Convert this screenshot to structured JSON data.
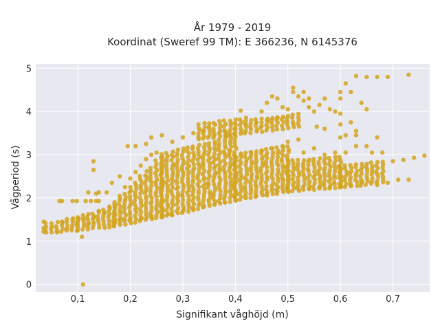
{
  "chart_data": {
    "type": "scatter",
    "title_line1": "År 1979 - 2019",
    "title_line2": "Koordinat (Sweref 99 TM): E 366236, N 6145376",
    "xlabel": "Signifikant våghöjd (m)",
    "ylabel": "Vågperiod (s)",
    "xlim": [
      0.02,
      0.77
    ],
    "ylim": [
      -0.18,
      5.1
    ],
    "xticks": [
      0.1,
      0.2,
      0.3,
      0.4,
      0.5,
      0.6,
      0.7
    ],
    "xtick_labels": [
      "0,1",
      "0,2",
      "0,3",
      "0,4",
      "0,5",
      "0,6",
      "0,7"
    ],
    "yticks": [
      0,
      1,
      2,
      3,
      4,
      5
    ],
    "ytick_labels": [
      "0",
      "1",
      "2",
      "3",
      "4",
      "5"
    ],
    "grid": true,
    "background": "#e8e8f0",
    "marker_color": "#d4a420",
    "points": [
      [
        0.11,
        0.0
      ],
      [
        0.035,
        1.45
      ],
      [
        0.035,
        1.3
      ],
      [
        0.035,
        1.22
      ],
      [
        0.06,
        1.22
      ],
      [
        0.07,
        1.45
      ],
      [
        0.09,
        1.5
      ],
      [
        0.108,
        1.1
      ],
      [
        0.065,
        1.93
      ],
      [
        0.07,
        1.93
      ],
      [
        0.09,
        1.93
      ],
      [
        0.098,
        1.93
      ],
      [
        0.115,
        1.93
      ],
      [
        0.125,
        1.93
      ],
      [
        0.135,
        1.93
      ],
      [
        0.14,
        1.93
      ],
      [
        0.12,
        2.13
      ],
      [
        0.135,
        2.1
      ],
      [
        0.14,
        2.13
      ],
      [
        0.155,
        2.13
      ],
      [
        0.13,
        2.65
      ],
      [
        0.13,
        2.85
      ],
      [
        0.165,
        2.35
      ],
      [
        0.18,
        2.5
      ],
      [
        0.1,
        1.55
      ],
      [
        0.11,
        1.6
      ],
      [
        0.12,
        1.4
      ],
      [
        0.13,
        1.55
      ],
      [
        0.14,
        1.7
      ],
      [
        0.15,
        1.65
      ],
      [
        0.16,
        1.8
      ],
      [
        0.17,
        1.9
      ],
      [
        0.18,
        2.05
      ],
      [
        0.19,
        2.25
      ],
      [
        0.2,
        2.45
      ],
      [
        0.21,
        2.6
      ],
      [
        0.22,
        2.75
      ],
      [
        0.23,
        2.9
      ],
      [
        0.24,
        3.0
      ],
      [
        0.25,
        3.05
      ],
      [
        0.195,
        3.2
      ],
      [
        0.21,
        3.2
      ],
      [
        0.23,
        3.25
      ],
      [
        0.24,
        3.4
      ],
      [
        0.26,
        3.45
      ],
      [
        0.28,
        3.3
      ],
      [
        0.3,
        3.4
      ],
      [
        0.32,
        3.5
      ],
      [
        0.34,
        3.55
      ],
      [
        0.36,
        3.45
      ],
      [
        0.38,
        3.55
      ],
      [
        0.4,
        3.6
      ],
      [
        0.42,
        3.7
      ],
      [
        0.44,
        3.75
      ],
      [
        0.46,
        3.8
      ],
      [
        0.48,
        3.85
      ],
      [
        0.39,
        3.1
      ],
      [
        0.41,
        3.0
      ],
      [
        0.43,
        3.05
      ],
      [
        0.45,
        3.1
      ],
      [
        0.47,
        3.15
      ],
      [
        0.49,
        3.2
      ],
      [
        0.5,
        3.3
      ],
      [
        0.52,
        3.35
      ],
      [
        0.45,
        4.0
      ],
      [
        0.46,
        4.2
      ],
      [
        0.47,
        4.35
      ],
      [
        0.48,
        4.3
      ],
      [
        0.49,
        4.1
      ],
      [
        0.5,
        4.05
      ],
      [
        0.51,
        4.45
      ],
      [
        0.52,
        4.35
      ],
      [
        0.53,
        4.25
      ],
      [
        0.54,
        4.1
      ],
      [
        0.55,
        4.0
      ],
      [
        0.56,
        4.15
      ],
      [
        0.57,
        4.3
      ],
      [
        0.58,
        4.05
      ],
      [
        0.59,
        4.0
      ],
      [
        0.6,
        4.3
      ],
      [
        0.6,
        4.45
      ],
      [
        0.61,
        4.65
      ],
      [
        0.62,
        4.45
      ],
      [
        0.64,
        4.2
      ],
      [
        0.65,
        4.05
      ],
      [
        0.63,
        4.82
      ],
      [
        0.65,
        4.8
      ],
      [
        0.67,
        4.8
      ],
      [
        0.69,
        4.8
      ],
      [
        0.73,
        4.85
      ],
      [
        0.41,
        4.02
      ],
      [
        0.51,
        4.55
      ],
      [
        0.53,
        4.45
      ],
      [
        0.54,
        4.3
      ],
      [
        0.555,
        3.65
      ],
      [
        0.57,
        3.6
      ],
      [
        0.6,
        3.7
      ],
      [
        0.61,
        3.45
      ],
      [
        0.62,
        3.75
      ],
      [
        0.63,
        3.45
      ],
      [
        0.6,
        3.95
      ],
      [
        0.65,
        3.2
      ],
      [
        0.6,
        3.4
      ],
      [
        0.63,
        3.55
      ],
      [
        0.67,
        3.4
      ],
      [
        0.59,
        3.05
      ],
      [
        0.61,
        3.05
      ],
      [
        0.53,
        3.05
      ],
      [
        0.55,
        3.15
      ],
      [
        0.57,
        3.0
      ],
      [
        0.63,
        3.2
      ],
      [
        0.66,
        3.05
      ],
      [
        0.68,
        3.05
      ],
      [
        0.7,
        2.85
      ],
      [
        0.72,
        2.88
      ],
      [
        0.74,
        2.93
      ],
      [
        0.76,
        2.98
      ],
      [
        0.73,
        2.42
      ],
      [
        0.71,
        2.42
      ],
      [
        0.69,
        2.35
      ],
      [
        0.67,
        2.3
      ],
      [
        0.26,
        1.55
      ],
      [
        0.28,
        1.6
      ],
      [
        0.3,
        1.7
      ],
      [
        0.32,
        1.75
      ],
      [
        0.34,
        1.8
      ],
      [
        0.36,
        1.85
      ],
      [
        0.38,
        1.9
      ],
      [
        0.4,
        1.95
      ],
      [
        0.42,
        2.0
      ],
      [
        0.44,
        2.05
      ],
      [
        0.46,
        2.1
      ],
      [
        0.48,
        2.15
      ],
      [
        0.5,
        2.2
      ],
      [
        0.52,
        2.2
      ],
      [
        0.54,
        2.22
      ],
      [
        0.56,
        2.25
      ],
      [
        0.58,
        2.25
      ],
      [
        0.6,
        2.28
      ],
      [
        0.62,
        2.3
      ],
      [
        0.64,
        2.35
      ],
      [
        0.2,
        1.5
      ],
      [
        0.22,
        1.52
      ],
      [
        0.24,
        1.55
      ],
      [
        0.18,
        1.5
      ]
    ],
    "bands": [
      {
        "x": [
          0.04,
          0.1
        ],
        "ylow_a": 1.2,
        "ylow_b": 1.25,
        "yhigh_a": 1.45,
        "yhigh_b": 1.55
      },
      {
        "x": [
          0.1,
          0.17
        ],
        "ylow_a": 1.25,
        "ylow_b": 1.35,
        "yhigh_a": 1.55,
        "yhigh_b": 1.85
      },
      {
        "x": [
          0.17,
          0.26
        ],
        "ylow_a": 1.35,
        "ylow_b": 1.55,
        "yhigh_a": 1.9,
        "yhigh_b": 3.0
      },
      {
        "x": [
          0.26,
          0.4
        ],
        "ylow_a": 1.55,
        "ylow_b": 1.95,
        "yhigh_a": 3.05,
        "yhigh_b": 3.5
      },
      {
        "x": [
          0.4,
          0.5
        ],
        "ylow_a": 1.95,
        "ylow_b": 2.15,
        "yhigh_a": 3.0,
        "yhigh_b": 3.2
      },
      {
        "x": [
          0.5,
          0.6
        ],
        "ylow_a": 2.15,
        "ylow_b": 2.25,
        "yhigh_a": 2.85,
        "yhigh_b": 2.95
      },
      {
        "x": [
          0.6,
          0.68
        ],
        "ylow_a": 2.25,
        "ylow_b": 2.35,
        "yhigh_a": 2.75,
        "yhigh_b": 2.85
      },
      {
        "x": [
          0.33,
          0.52
        ],
        "ylow_a": 3.35,
        "ylow_b": 3.65,
        "yhigh_a": 3.75,
        "yhigh_b": 3.95
      }
    ]
  }
}
